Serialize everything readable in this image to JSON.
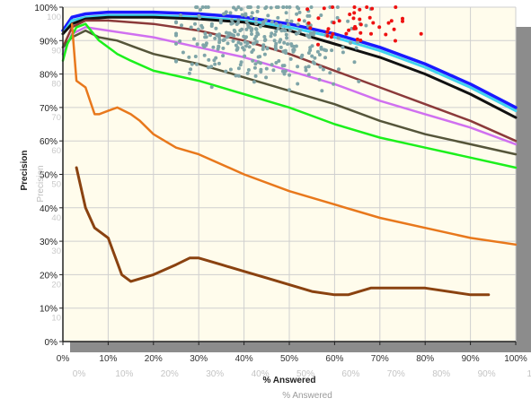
{
  "chart_data": {
    "type": "line",
    "title": "",
    "xlabel": "% Answered",
    "ylabel": "Precision",
    "xlim": [
      0,
      100
    ],
    "ylim": [
      0,
      100
    ],
    "grid": true,
    "x_ticks": [
      "0%",
      "10%",
      "20%",
      "30%",
      "40%",
      "50%",
      "60%",
      "70%",
      "80%",
      "90%",
      "100%"
    ],
    "y_ticks": [
      "0%",
      "10%",
      "20%",
      "30%",
      "40%",
      "50%",
      "60%",
      "70%",
      "80%",
      "90%",
      "100%"
    ],
    "ghost_x_ticks": [
      "0%",
      "10%",
      "20%",
      "30%",
      "40%",
      "50%",
      "60%",
      "70%",
      "80%",
      "90%",
      "10"
    ],
    "ghost_y_ticks": [
      "100",
      "90",
      "80",
      "70",
      "60",
      "50",
      "40",
      "30",
      "20",
      "10"
    ],
    "ghost_xlabel": "% Answered",
    "ghost_ylabel": "Precision",
    "colors": {
      "plot_bg": "#fffcec",
      "grid": "#cfcfcf",
      "shadow": "#8c8c8c",
      "blue": "#1a1aff",
      "cyan": "#3fd2ee",
      "black": "#111111",
      "maroon": "#8b3a3a",
      "violet": "#d070f0",
      "olive": "#55553a",
      "green": "#1cf01c",
      "orange": "#e8781c",
      "brown": "#8a4210",
      "teal_points": "#7fa5a8",
      "red_points": "#ee1111"
    },
    "series": [
      {
        "color": "blue",
        "width": 3.5,
        "x": [
          0,
          2,
          5,
          10,
          20,
          30,
          40,
          50,
          60,
          70,
          80,
          90,
          100
        ],
        "y": [
          93,
          97,
          98,
          98.5,
          98.5,
          98,
          97,
          95,
          92,
          88,
          83,
          77,
          70
        ]
      },
      {
        "color": "cyan",
        "width": 3,
        "x": [
          0,
          2,
          5,
          10,
          20,
          30,
          40,
          50,
          60,
          70,
          80,
          90,
          100
        ],
        "y": [
          92,
          96,
          97,
          97.5,
          97.5,
          97,
          96,
          94,
          91,
          87,
          82,
          76,
          69
        ]
      },
      {
        "color": "black",
        "width": 3,
        "x": [
          0,
          2,
          5,
          10,
          20,
          30,
          40,
          50,
          60,
          70,
          80,
          90,
          100
        ],
        "y": [
          92,
          95,
          96.5,
          97,
          97,
          96.5,
          95.5,
          93,
          89,
          85,
          80,
          74,
          67
        ]
      },
      {
        "color": "maroon",
        "width": 2.5,
        "x": [
          0,
          2,
          5,
          10,
          20,
          30,
          40,
          50,
          60,
          70,
          80,
          90,
          100
        ],
        "y": [
          88,
          94,
          96,
          96,
          95,
          93,
          90,
          86,
          81,
          76,
          71,
          66,
          60
        ]
      },
      {
        "color": "violet",
        "width": 2.5,
        "x": [
          0,
          2,
          5,
          10,
          20,
          30,
          40,
          50,
          60,
          70,
          80,
          90,
          100
        ],
        "y": [
          86,
          92,
          94,
          93,
          91,
          88,
          85,
          81,
          77,
          72,
          68,
          64,
          59
        ]
      },
      {
        "color": "olive",
        "width": 2.5,
        "x": [
          0,
          2,
          5,
          8,
          12,
          16,
          20,
          30,
          40,
          50,
          60,
          70,
          80,
          90,
          100
        ],
        "y": [
          88,
          91,
          93,
          91,
          90,
          88,
          86,
          83,
          79,
          75,
          71,
          66,
          62,
          59,
          56
        ]
      },
      {
        "color": "green",
        "width": 2.5,
        "x": [
          0,
          1,
          3,
          5,
          8,
          12,
          15,
          20,
          30,
          40,
          50,
          60,
          70,
          80,
          90,
          100
        ],
        "y": [
          84,
          89,
          94,
          95,
          90,
          86,
          84,
          81,
          78,
          74,
          70,
          65,
          61,
          58,
          55,
          52
        ]
      },
      {
        "color": "orange",
        "width": 2.5,
        "x": [
          2,
          3,
          5,
          7,
          8,
          10,
          12,
          15,
          17,
          20,
          25,
          30,
          40,
          50,
          60,
          70,
          80,
          90,
          100
        ],
        "y": [
          95,
          78,
          76,
          68,
          68,
          69,
          70,
          68,
          66,
          62,
          58,
          56,
          50,
          45,
          41,
          37,
          34,
          31,
          29
        ]
      },
      {
        "color": "brown",
        "width": 3,
        "x": [
          3,
          5,
          7,
          10,
          13,
          15,
          20,
          25,
          28,
          30,
          35,
          40,
          45,
          50,
          55,
          60,
          63,
          68,
          75,
          80,
          90,
          94
        ],
        "y": [
          52,
          40,
          34,
          31,
          20,
          18,
          20,
          23,
          25,
          25,
          23,
          21,
          19,
          17,
          15,
          14,
          14,
          16,
          16,
          16,
          14,
          14
        ]
      }
    ],
    "scatter_clusters": [
      {
        "color": "teal_points",
        "n": 320,
        "cx": 44,
        "sx": 10,
        "cy": 90,
        "sy": 6,
        "ymax": 100,
        "xmin": 25,
        "xmax": 68,
        "ymin": 75
      },
      {
        "color": "red_points",
        "n": 45,
        "cx": 64,
        "sx": 6,
        "cy": 94,
        "sy": 4,
        "ymax": 100,
        "xmin": 50,
        "xmax": 82,
        "ymin": 85
      }
    ]
  }
}
